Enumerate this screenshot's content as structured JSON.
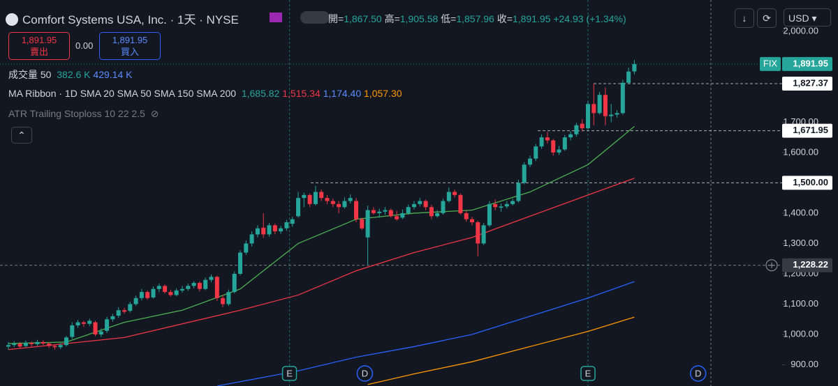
{
  "header": {
    "title": "Comfort Systems USA, Inc. · 1天 · NYSE",
    "open_label": "開=",
    "open": "1,867.50",
    "high_label": "高=",
    "high": "1,905.58",
    "low_label": "低=",
    "low": "1,857.96",
    "close_label": "收=",
    "close": "1,891.95",
    "change": "+24.93 (+1.34%)",
    "currency": "USD"
  },
  "trade": {
    "sell_price": "1,891.95",
    "sell": "賣出",
    "spread": "0.00",
    "buy_price": "1,891.95",
    "buy": "買入"
  },
  "legend": {
    "volume": {
      "name": "成交量 50",
      "values": [
        "382.6 K",
        "429.14 K"
      ]
    },
    "ribbon": {
      "name": "MA Ribbon · 1D SMA 20 SMA 50 SMA 150 SMA 200",
      "values": [
        "1,685.82",
        "1,515.34",
        "1,174.40",
        "1,057.30"
      ]
    },
    "atr": "ATR Trailing Stoploss 10 22 2.5"
  },
  "chart_data": {
    "type": "candlestick",
    "up_color": "#26a69a",
    "down_color": "#f23645",
    "ylim": [
      830,
      2103
    ],
    "yticks": [
      {
        "value": 900,
        "label": "900.00"
      },
      {
        "value": 1000,
        "label": "1,000.00"
      },
      {
        "value": 1100,
        "label": "1,100.00"
      },
      {
        "value": 1200,
        "label": "1,200.00"
      },
      {
        "value": 1300,
        "label": "1,300.00"
      },
      {
        "value": 1400,
        "label": "1,400.00"
      },
      {
        "value": 1600,
        "label": "1,600.00"
      },
      {
        "value": 1700,
        "label": "1,700.00"
      },
      {
        "value": 2000,
        "label": "2,000.00"
      }
    ],
    "ohlc": [
      [
        960,
        975,
        950,
        965
      ],
      [
        965,
        978,
        958,
        970
      ],
      [
        970,
        975,
        955,
        960
      ],
      [
        962,
        980,
        958,
        972
      ],
      [
        972,
        976,
        960,
        968
      ],
      [
        968,
        982,
        962,
        975
      ],
      [
        975,
        980,
        965,
        970
      ],
      [
        970,
        974,
        955,
        962
      ],
      [
        962,
        966,
        950,
        958
      ],
      [
        958,
        972,
        952,
        965
      ],
      [
        965,
        995,
        960,
        990
      ],
      [
        992,
        1040,
        985,
        1030
      ],
      [
        1030,
        1048,
        1022,
        1040
      ],
      [
        1040,
        1045,
        1025,
        1035
      ],
      [
        1035,
        1052,
        1028,
        1045
      ],
      [
        1040,
        1045,
        995,
        1000
      ],
      [
        1000,
        1020,
        992,
        1010
      ],
      [
        1012,
        1058,
        1005,
        1050
      ],
      [
        1050,
        1068,
        1042,
        1060
      ],
      [
        1062,
        1090,
        1055,
        1080
      ],
      [
        1080,
        1088,
        1068,
        1075
      ],
      [
        1078,
        1108,
        1072,
        1100
      ],
      [
        1100,
        1128,
        1095,
        1120
      ],
      [
        1120,
        1150,
        1112,
        1140
      ],
      [
        1140,
        1145,
        1115,
        1120
      ],
      [
        1122,
        1158,
        1118,
        1150
      ],
      [
        1150,
        1168,
        1140,
        1160
      ],
      [
        1160,
        1165,
        1135,
        1140
      ],
      [
        1140,
        1148,
        1125,
        1130
      ],
      [
        1130,
        1152,
        1126,
        1145
      ],
      [
        1145,
        1160,
        1138,
        1150
      ],
      [
        1150,
        1168,
        1144,
        1160
      ],
      [
        1160,
        1176,
        1152,
        1170
      ],
      [
        1170,
        1175,
        1142,
        1150
      ],
      [
        1150,
        1188,
        1146,
        1180
      ],
      [
        1180,
        1198,
        1172,
        1190
      ],
      [
        1190,
        1194,
        1110,
        1120
      ],
      [
        1120,
        1130,
        1090,
        1100
      ],
      [
        1100,
        1148,
        1094,
        1140
      ],
      [
        1140,
        1208,
        1135,
        1200
      ],
      [
        1200,
        1278,
        1195,
        1270
      ],
      [
        1270,
        1310,
        1262,
        1300
      ],
      [
        1300,
        1340,
        1290,
        1330
      ],
      [
        1330,
        1360,
        1320,
        1350
      ],
      [
        1352,
        1400,
        1318,
        1330
      ],
      [
        1330,
        1368,
        1322,
        1360
      ],
      [
        1360,
        1366,
        1330,
        1340
      ],
      [
        1340,
        1358,
        1332,
        1350
      ],
      [
        1350,
        1378,
        1342,
        1370
      ],
      [
        1365,
        1388,
        1355,
        1380
      ],
      [
        1390,
        1470,
        1385,
        1450
      ],
      [
        1450,
        1468,
        1420,
        1460
      ],
      [
        1460,
        1465,
        1420,
        1430
      ],
      [
        1430,
        1490,
        1425,
        1470
      ],
      [
        1470,
        1478,
        1440,
        1450
      ],
      [
        1450,
        1460,
        1430,
        1440
      ],
      [
        1440,
        1448,
        1420,
        1430
      ],
      [
        1430,
        1440,
        1400,
        1420
      ],
      [
        1420,
        1452,
        1415,
        1440
      ],
      [
        1440,
        1462,
        1432,
        1450
      ],
      [
        1440,
        1450,
        1370,
        1380
      ],
      [
        1380,
        1385,
        1345,
        1350
      ],
      [
        1320,
        1425,
        1230,
        1410
      ],
      [
        1410,
        1420,
        1395,
        1400
      ],
      [
        1400,
        1415,
        1385,
        1405
      ],
      [
        1405,
        1420,
        1395,
        1410
      ],
      [
        1410,
        1415,
        1385,
        1390
      ],
      [
        1390,
        1408,
        1375,
        1380
      ],
      [
        1385,
        1412,
        1380,
        1400
      ],
      [
        1400,
        1428,
        1395,
        1420
      ],
      [
        1420,
        1440,
        1412,
        1430
      ],
      [
        1430,
        1450,
        1422,
        1440
      ],
      [
        1440,
        1445,
        1410,
        1420
      ],
      [
        1420,
        1428,
        1380,
        1390
      ],
      [
        1390,
        1410,
        1385,
        1400
      ],
      [
        1400,
        1448,
        1395,
        1440
      ],
      [
        1440,
        1485,
        1435,
        1470
      ],
      [
        1470,
        1478,
        1452,
        1460
      ],
      [
        1460,
        1465,
        1395,
        1400
      ],
      [
        1400,
        1408,
        1372,
        1380
      ],
      [
        1380,
        1388,
        1360,
        1370
      ],
      [
        1370,
        1375,
        1258,
        1300
      ],
      [
        1300,
        1368,
        1295,
        1360
      ],
      [
        1360,
        1440,
        1355,
        1430
      ],
      [
        1430,
        1445,
        1410,
        1420
      ],
      [
        1418,
        1432,
        1405,
        1422
      ],
      [
        1422,
        1440,
        1415,
        1430
      ],
      [
        1430,
        1448,
        1425,
        1440
      ],
      [
        1440,
        1510,
        1435,
        1500
      ],
      [
        1500,
        1568,
        1495,
        1560
      ],
      [
        1560,
        1590,
        1552,
        1580
      ],
      [
        1580,
        1628,
        1572,
        1620
      ],
      [
        1620,
        1660,
        1612,
        1650
      ],
      [
        1650,
        1668,
        1630,
        1640
      ],
      [
        1640,
        1645,
        1590,
        1600
      ],
      [
        1600,
        1622,
        1592,
        1610
      ],
      [
        1610,
        1658,
        1605,
        1650
      ],
      [
        1650,
        1670,
        1640,
        1660
      ],
      [
        1660,
        1698,
        1652,
        1690
      ],
      [
        1695,
        1710,
        1670,
        1680
      ],
      [
        1680,
        1770,
        1675,
        1760
      ],
      [
        1760,
        1827.37,
        1690,
        1730
      ],
      [
        1730,
        1800,
        1725,
        1790
      ],
      [
        1790,
        1815,
        1690,
        1720
      ],
      [
        1720,
        1760,
        1700,
        1725
      ],
      [
        1725,
        1740,
        1715,
        1730
      ],
      [
        1730,
        1840,
        1725,
        1830
      ],
      [
        1830,
        1880,
        1825,
        1867
      ],
      [
        1867.5,
        1905.58,
        1857.96,
        1891.95
      ]
    ],
    "series": [
      {
        "name": "SMA 20",
        "color": "#4caf50",
        "x": [
          0,
          10,
          20,
          30,
          40,
          50,
          60,
          70,
          80,
          90,
          100,
          108
        ],
        "values": [
          970,
          975,
          1040,
          1080,
          1150,
          1300,
          1380,
          1400,
          1410,
          1470,
          1560,
          1685.82
        ]
      },
      {
        "name": "SMA 50",
        "color": "#f23645",
        "x": [
          0,
          20,
          40,
          50,
          60,
          70,
          80,
          90,
          100,
          108
        ],
        "values": [
          950,
          990,
          1080,
          1130,
          1210,
          1270,
          1320,
          1390,
          1460,
          1515.34
        ]
      },
      {
        "name": "SMA 150",
        "color": "#2962ff",
        "x": [
          36,
          50,
          60,
          70,
          80,
          90,
          100,
          108
        ],
        "values": [
          830,
          880,
          925,
          960,
          1000,
          1060,
          1120,
          1174.4
        ]
      },
      {
        "name": "SMA 200",
        "color": "#ff9800",
        "x": [
          62,
          70,
          80,
          90,
          100,
          108
        ],
        "values": [
          835,
          870,
          910,
          960,
          1010,
          1057.3
        ]
      }
    ],
    "price_lines": [
      {
        "value": 1891.95,
        "label": "1,891.95"
      },
      {
        "value": 1827.37,
        "label": "1,827.37"
      },
      {
        "value": 1671.95,
        "label": "1,671.95"
      },
      {
        "value": 1500,
        "label": "1,500.00"
      },
      {
        "value": 1228.22,
        "label": "1,228.22"
      }
    ],
    "symbol_tag": "FIX",
    "events": [
      {
        "label": "E",
        "x": 48.5
      },
      {
        "label": "D",
        "x": 61.5
      },
      {
        "label": "E",
        "x": 100
      },
      {
        "label": "D",
        "x": 119
      }
    ]
  }
}
